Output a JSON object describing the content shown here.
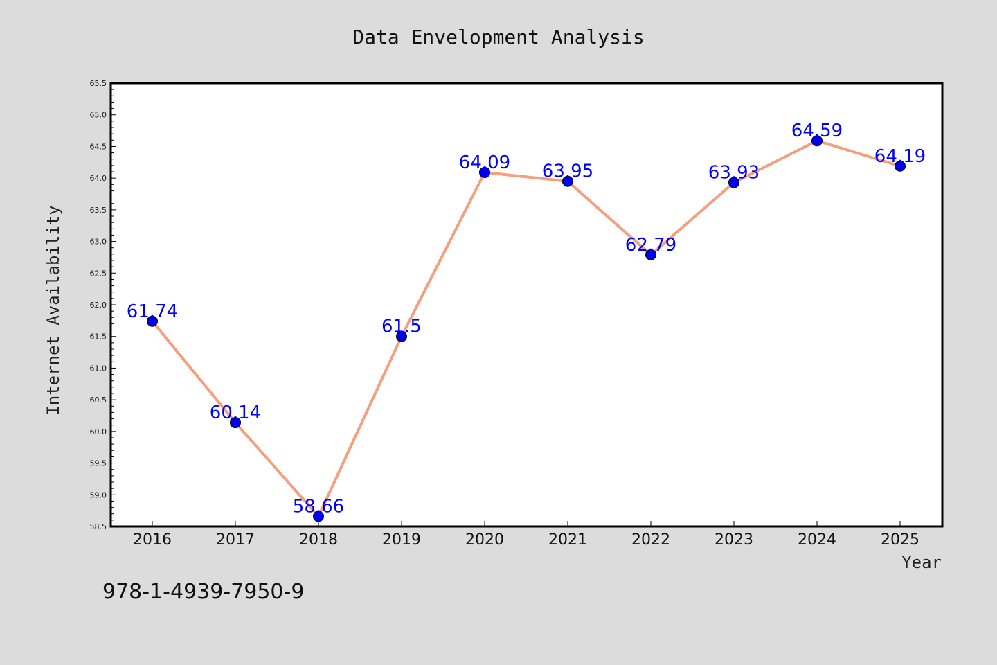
{
  "chart_data": {
    "type": "line",
    "title": "Data Envelopment Analysis",
    "xlabel": "Year",
    "ylabel": "Internet Availability",
    "categories": [
      "2016",
      "2017",
      "2018",
      "2019",
      "2020",
      "2021",
      "2022",
      "2023",
      "2024",
      "2025"
    ],
    "series": [
      {
        "values": [
          61.74,
          60.14,
          58.66,
          61.5,
          64.09,
          63.95,
          62.79,
          63.93,
          64.59,
          64.19
        ],
        "labels": [
          "61.74",
          "60.14",
          "58.66",
          "61.5",
          "64.09",
          "63.95",
          "62.79",
          "63.93",
          "64.59",
          "64.19"
        ],
        "line_color": "#f4a07f",
        "marker_color": "#0000ee"
      }
    ],
    "ylim": [
      58.5,
      65.5
    ],
    "yticks": [
      "58.5",
      "59.0",
      "59.5",
      "60.0",
      "60.5",
      "61.0",
      "61.5",
      "62.0",
      "62.5",
      "63.0",
      "63.5",
      "64.0",
      "64.5",
      "65.0",
      "65.5"
    ],
    "grid": false,
    "legend": false
  },
  "footer_text": "978-1-4939-7950-9",
  "colors": {
    "background": "#dcdcdc",
    "plot_background": "#ffffff",
    "data_label": "#0000ff"
  }
}
